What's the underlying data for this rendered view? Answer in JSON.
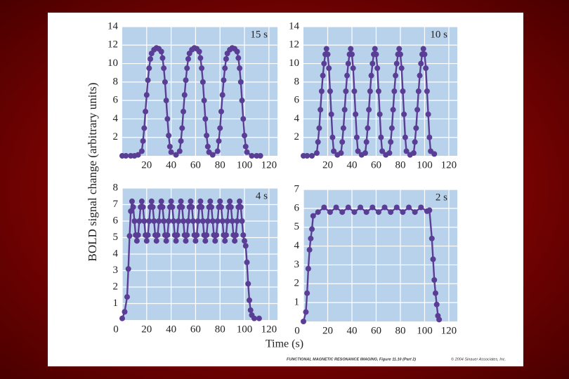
{
  "figure": {
    "ylabel": "BOLD signal change (arbitrary units)",
    "xlabel": "Time (s)",
    "caption": {
      "title": "FUNCTIONAL MAGNETIC RESONANCE IMAGING, Figure 11.10 (Part 2)",
      "credit": "© 2004 Sinauer Associates, Inc."
    }
  },
  "chart_data": [
    {
      "type": "line",
      "annotation": "15 s",
      "color": "#5a3d94",
      "panel_color": "#b9d2ec",
      "grid": true,
      "xlim": [
        0,
        127
      ],
      "ylim": [
        0,
        14
      ],
      "xticks": [
        20,
        40,
        60,
        80,
        100,
        120
      ],
      "yticks": [
        2,
        4,
        6,
        8,
        10,
        12,
        14
      ],
      "x": [
        0,
        3,
        7,
        10,
        13,
        16,
        17,
        18,
        19,
        20,
        21,
        22,
        23,
        24,
        26,
        28,
        30,
        32,
        33,
        34,
        35,
        36,
        37,
        38,
        39,
        40,
        44,
        47,
        48,
        49,
        50,
        51,
        52,
        53,
        54,
        55,
        57,
        59,
        61,
        63,
        64,
        65,
        66,
        67,
        68,
        69,
        70,
        71,
        74,
        78,
        79,
        80,
        81,
        82,
        83,
        84,
        85,
        86,
        88,
        90,
        92,
        94,
        95,
        96,
        97,
        98,
        99,
        100,
        101,
        102,
        106,
        110,
        113
      ],
      "values": [
        0,
        0,
        0,
        0,
        0.1,
        0.5,
        1.6,
        3,
        4.8,
        6.6,
        8.2,
        9.5,
        10.5,
        11.1,
        11.5,
        11.7,
        11.6,
        11.3,
        10.6,
        9.5,
        8,
        6,
        4,
        2.2,
        1,
        0.4,
        0.1,
        0.5,
        1.6,
        3,
        4.8,
        6.6,
        8.2,
        9.5,
        10.5,
        11.1,
        11.5,
        11.7,
        11.6,
        11.3,
        10.6,
        9.5,
        8,
        6,
        4,
        2.2,
        1,
        0.4,
        0.1,
        0.5,
        1.6,
        3,
        4.8,
        6.6,
        8.2,
        9.5,
        10.5,
        11.1,
        11.5,
        11.7,
        11.6,
        11.3,
        10.6,
        9.5,
        8,
        6,
        4,
        2.2,
        1,
        0.4,
        0,
        0,
        0
      ]
    },
    {
      "type": "line",
      "annotation": "10 s",
      "color": "#5a3d94",
      "panel_color": "#b9d2ec",
      "grid": true,
      "xlim": [
        0,
        127
      ],
      "ylim": [
        0,
        14
      ],
      "xticks": [
        20,
        40,
        60,
        80,
        100,
        120
      ],
      "yticks": [
        2,
        4,
        6,
        8,
        10,
        12,
        14
      ],
      "x": [
        0,
        3,
        7,
        11,
        12,
        13,
        14,
        15,
        16,
        17,
        18,
        19,
        20,
        21,
        22,
        23,
        24,
        25,
        28,
        31,
        32,
        33,
        34,
        35,
        36,
        37,
        38,
        39,
        40,
        41,
        42,
        43,
        44,
        45,
        48,
        51,
        52,
        53,
        54,
        55,
        56,
        57,
        58,
        59,
        60,
        61,
        62,
        63,
        64,
        65,
        68,
        71,
        72,
        73,
        74,
        75,
        76,
        77,
        78,
        79,
        80,
        81,
        82,
        83,
        84,
        85,
        88,
        91,
        92,
        93,
        94,
        95,
        96,
        97,
        98,
        99,
        100,
        101,
        102,
        103,
        104,
        105,
        108
      ],
      "values": [
        0,
        0,
        0,
        0.3,
        1.5,
        3,
        5,
        7,
        8.7,
        10,
        11,
        11.6,
        11,
        9.5,
        7,
        4.5,
        2,
        0.5,
        0.1,
        0.3,
        1.5,
        3,
        5,
        7,
        8.7,
        10,
        11,
        11.6,
        11,
        9.5,
        7,
        4.5,
        2,
        0.5,
        0.1,
        0.3,
        1.5,
        3,
        5,
        7,
        8.7,
        10,
        11,
        11.6,
        11,
        9.5,
        7,
        4.5,
        2,
        0.5,
        0.1,
        0.3,
        1.5,
        3,
        5,
        7,
        8.7,
        10,
        11,
        11.6,
        11,
        9.5,
        7,
        4.5,
        2,
        0.5,
        0.1,
        0.3,
        1.5,
        3,
        5,
        7,
        8.7,
        10,
        11,
        11.6,
        11,
        9.5,
        7,
        4.5,
        2,
        0.5,
        0.2
      ]
    },
    {
      "type": "line",
      "annotation": "4 s",
      "color": "#5a3d94",
      "panel_color": "#b9d2ec",
      "grid": true,
      "xlim": [
        0,
        127
      ],
      "ylim": [
        0,
        8
      ],
      "xticks": [
        0,
        20,
        40,
        60,
        80,
        100,
        120
      ],
      "yticks": [
        1,
        2,
        3,
        4,
        5,
        6,
        7,
        8
      ],
      "x": [
        0,
        2,
        4,
        5,
        6,
        7,
        8,
        9,
        10,
        11,
        12,
        13,
        14,
        15,
        16,
        17,
        18,
        19,
        20,
        21,
        22,
        23,
        24,
        25,
        26,
        27,
        28,
        29,
        30,
        31,
        32,
        33,
        34,
        35,
        36,
        37,
        38,
        39,
        40,
        41,
        42,
        43,
        44,
        45,
        46,
        47,
        48,
        49,
        50,
        51,
        52,
        53,
        54,
        55,
        56,
        57,
        58,
        59,
        60,
        61,
        62,
        63,
        64,
        65,
        66,
        67,
        68,
        69,
        70,
        71,
        72,
        73,
        74,
        75,
        76,
        77,
        78,
        79,
        80,
        81,
        82,
        83,
        84,
        85,
        86,
        87,
        88,
        89,
        90,
        91,
        92,
        93,
        94,
        95,
        96,
        97,
        98,
        99,
        100,
        101,
        102,
        103,
        104,
        105,
        106,
        108,
        112
      ],
      "values": [
        0.1,
        0.5,
        1.4,
        3.1,
        5.1,
        6.6,
        7.2,
        6.85,
        6,
        5.15,
        4.8,
        5.15,
        6,
        6.85,
        7.2,
        6.85,
        6,
        5.15,
        4.8,
        5.15,
        6,
        6.85,
        7.2,
        6.85,
        6,
        5.15,
        4.8,
        5.15,
        6,
        6.85,
        7.2,
        6.85,
        6,
        5.15,
        4.8,
        5.15,
        6,
        6.85,
        7.2,
        6.85,
        6,
        5.15,
        4.8,
        5.15,
        6,
        6.85,
        7.2,
        6.85,
        6,
        5.15,
        4.8,
        5.15,
        6,
        6.85,
        7.2,
        6.85,
        6,
        5.15,
        4.8,
        5.15,
        6,
        6.85,
        7.2,
        6.85,
        6,
        5.15,
        4.8,
        5.15,
        6,
        6.85,
        7.2,
        6.85,
        6,
        5.15,
        4.8,
        5.15,
        6,
        6.85,
        7.2,
        6.85,
        6,
        5.15,
        4.8,
        5.15,
        6,
        6.85,
        7.2,
        6.85,
        6,
        5.15,
        4.8,
        5.15,
        6,
        6.85,
        7.2,
        6.85,
        6,
        5.15,
        4.8,
        4.5,
        3.5,
        2.2,
        1.2,
        0.6,
        0.3,
        0.1,
        0.1
      ]
    },
    {
      "type": "line",
      "annotation": "2 s",
      "color": "#5a3d94",
      "panel_color": "#b9d2ec",
      "grid": true,
      "xlim": [
        0,
        127
      ],
      "ylim": [
        0,
        7
      ],
      "xticks": [
        0,
        20,
        40,
        60,
        80,
        100,
        120
      ],
      "yticks": [
        1,
        2,
        3,
        4,
        5,
        6,
        7
      ],
      "x": [
        0,
        2,
        3,
        4,
        5,
        6,
        7,
        8,
        12,
        17,
        22,
        27,
        32,
        37,
        42,
        47,
        52,
        57,
        62,
        67,
        72,
        77,
        82,
        87,
        92,
        97,
        102,
        104,
        106,
        107,
        108,
        109,
        110,
        111,
        112
      ],
      "values": [
        0,
        0.5,
        1.5,
        2.8,
        3.8,
        4.4,
        4.9,
        5.6,
        5.8,
        6.05,
        5.8,
        6.05,
        5.8,
        6.05,
        5.8,
        6.05,
        5.8,
        6.05,
        5.8,
        6.05,
        5.8,
        6.05,
        5.8,
        6.05,
        5.8,
        6.05,
        5.85,
        5.9,
        4.4,
        3.3,
        2.2,
        1.5,
        0.9,
        0.3,
        0.1
      ]
    }
  ]
}
